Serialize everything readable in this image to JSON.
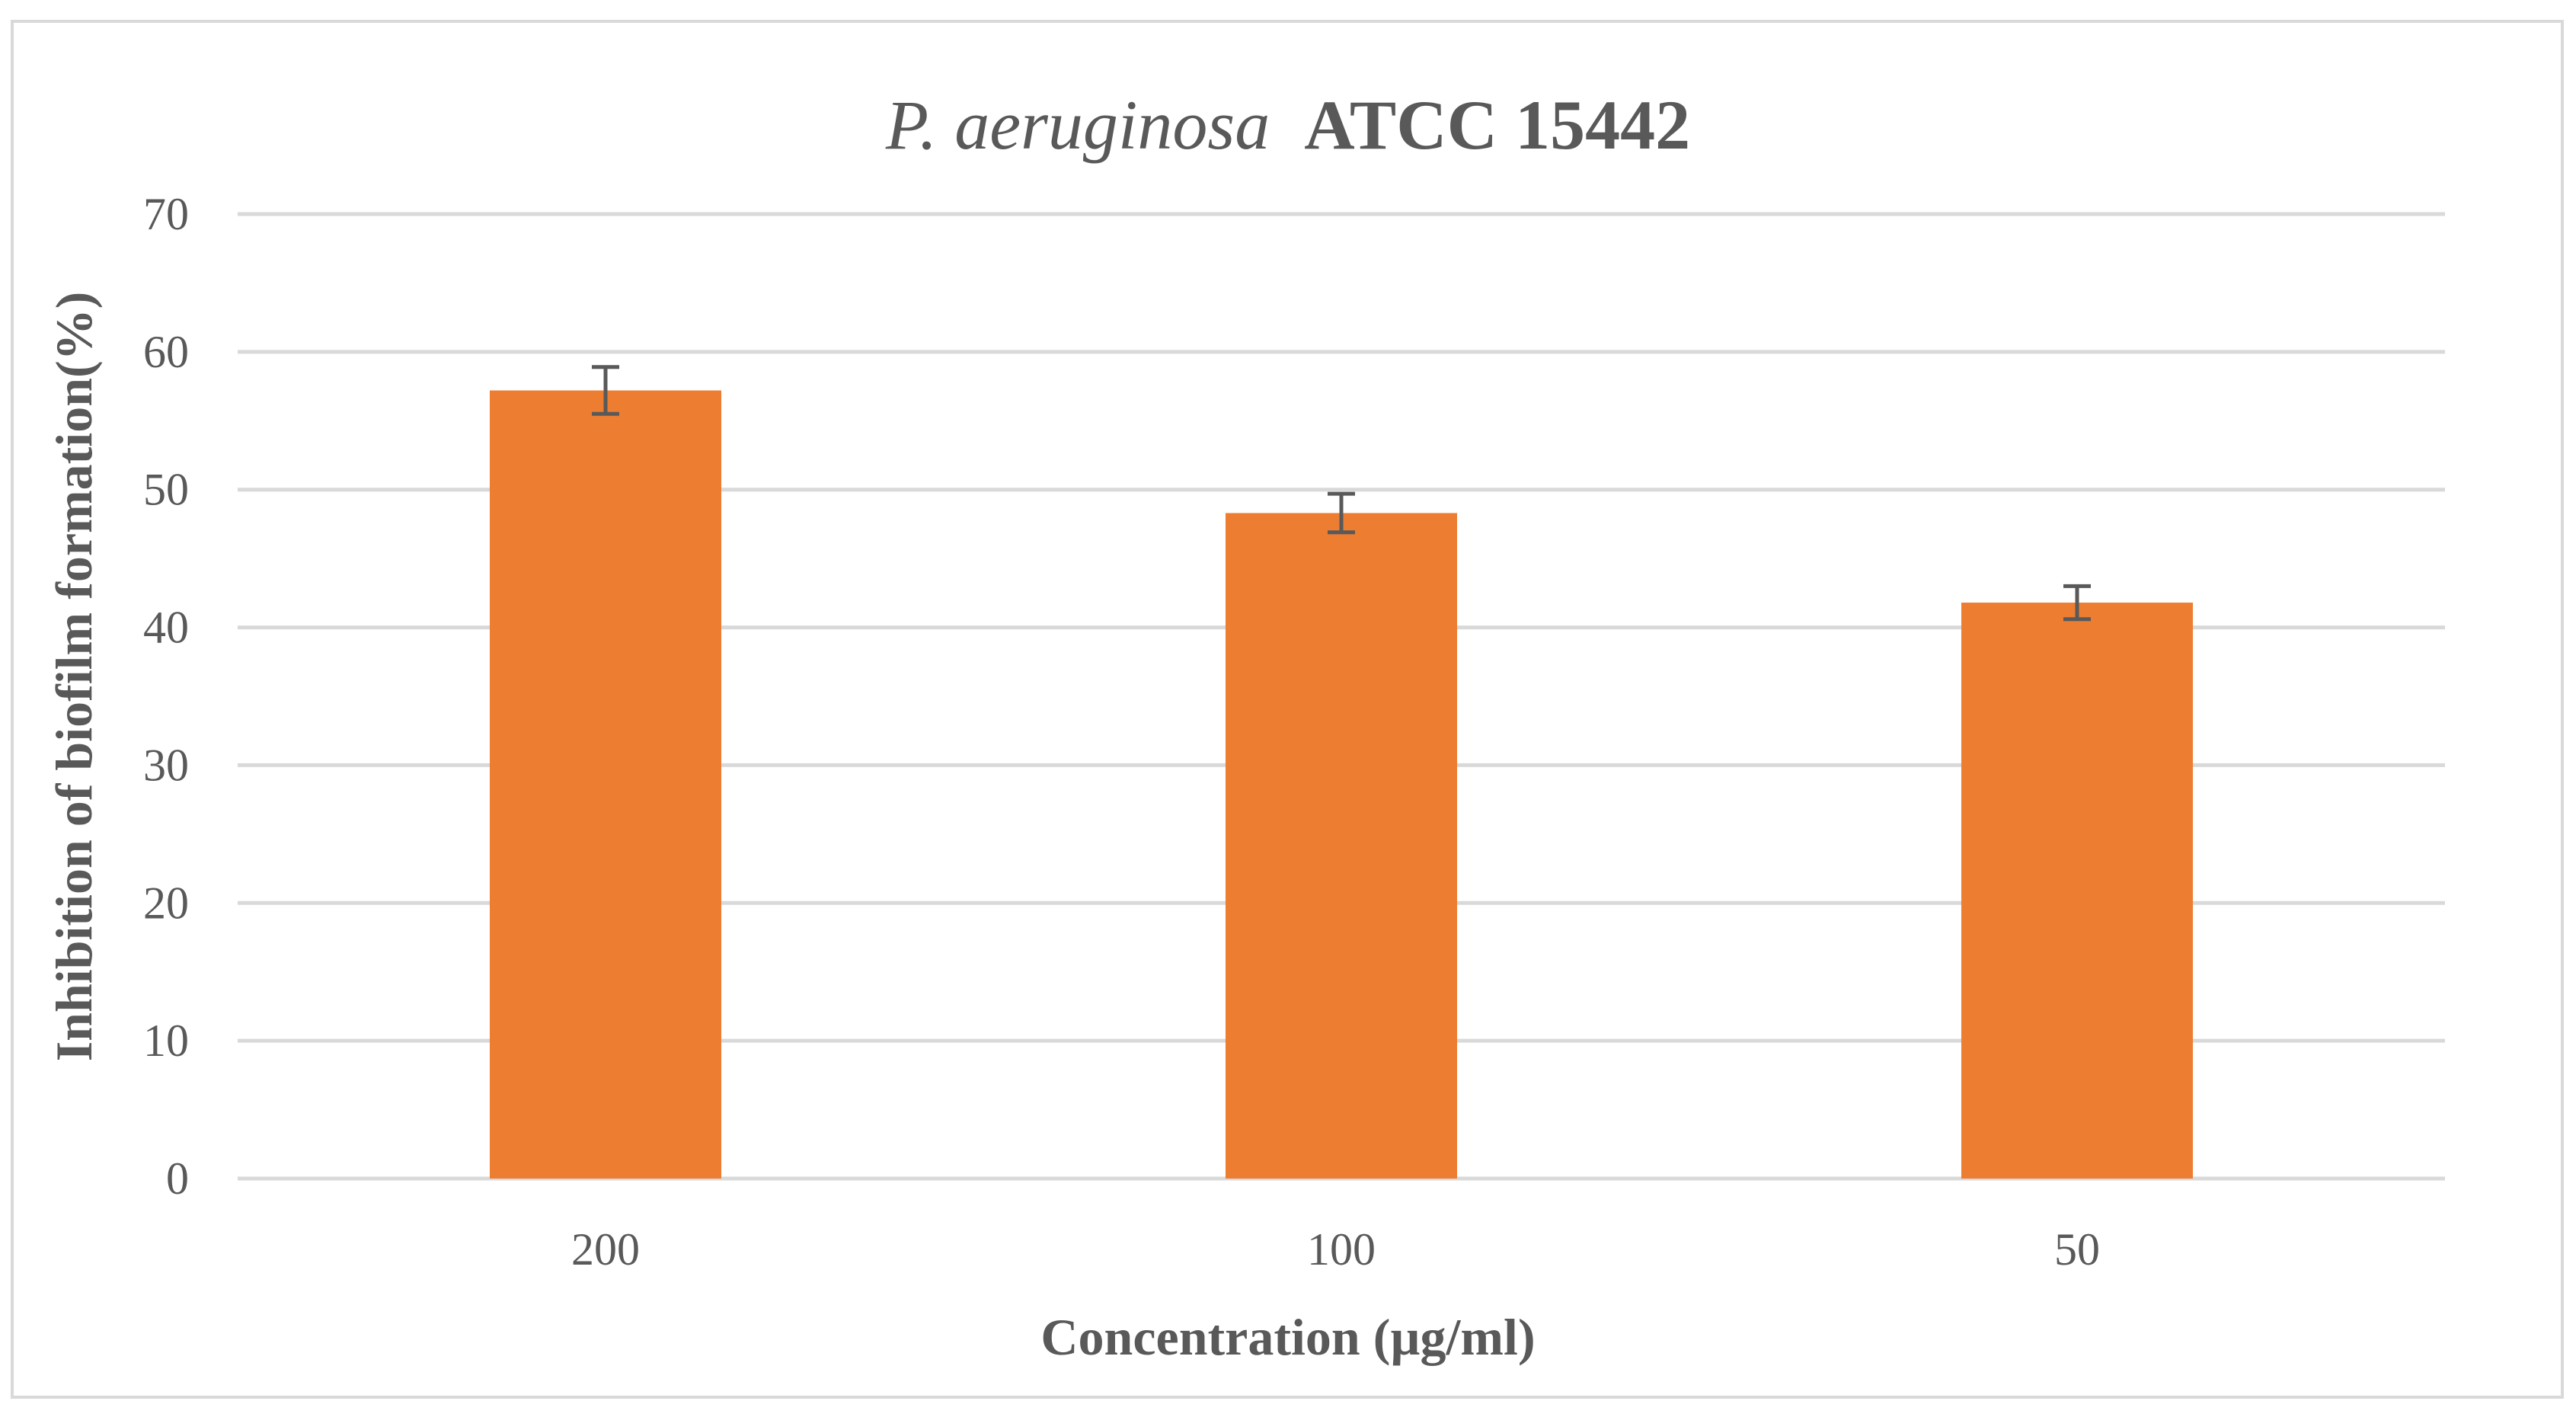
{
  "chart_data": {
    "type": "bar",
    "title_italic": "P. aeruginosa",
    "title_rest": "ATCC 15442",
    "xlabel": "Concentration (µg/ml)",
    "ylabel": "Inhibition of biofilm formation(%)",
    "categories": [
      "200",
      "100",
      "50"
    ],
    "values": [
      57.2,
      48.3,
      41.8
    ],
    "errors": [
      1.7,
      1.4,
      1.2
    ],
    "ylim": [
      0,
      70
    ],
    "yticks": [
      0,
      10,
      20,
      30,
      40,
      50,
      60,
      70
    ],
    "grid": true,
    "legend": false,
    "colors": {
      "bar": "#ed7d31",
      "error_bar": "#595959",
      "grid": "#d9d9d9",
      "text": "#595959",
      "border": "#d9d9d9"
    }
  }
}
